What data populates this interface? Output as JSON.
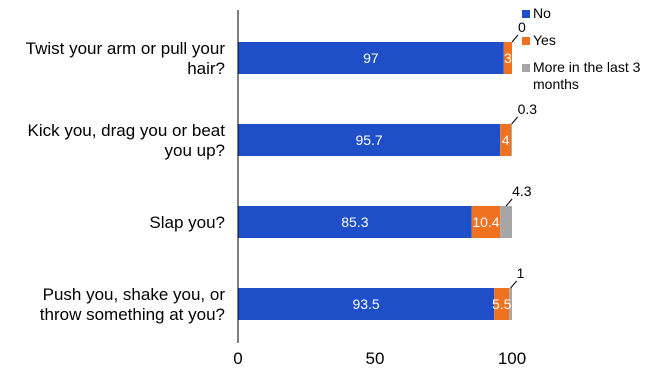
{
  "chart_data": {
    "type": "bar",
    "orientation": "horizontal",
    "stacked": true,
    "title": "",
    "xlabel": "",
    "ylabel": "",
    "xlim": [
      0,
      100
    ],
    "xticks": [
      "0",
      "50",
      "100"
    ],
    "grid": false,
    "legend_position": "top-right",
    "categories": [
      [
        "Twist your arm or pull your",
        "hair?"
      ],
      [
        "Kick you, drag you or beat",
        "you up?"
      ],
      [
        "Slap you?"
      ],
      [
        "Push you, shake you, or",
        "throw something at you?"
      ]
    ],
    "series": [
      {
        "name": "No",
        "color": "#1f4fc8",
        "values": [
          97,
          95.7,
          85.3,
          93.5
        ],
        "labels": [
          "97",
          "95.7",
          "85.3",
          "93.5"
        ]
      },
      {
        "name": "Yes",
        "color": "#f07120",
        "values": [
          3,
          4,
          10.4,
          5.5
        ],
        "labels": [
          "3",
          "4",
          "10.4",
          "5.5"
        ]
      },
      {
        "name": "More in the last 3 months",
        "legend_lines": [
          "More in the last 3",
          "months"
        ],
        "color": "#a6a6a6",
        "values": [
          0,
          0.3,
          4.3,
          1
        ],
        "labels": [
          "0",
          "0.3",
          "4.3",
          "1"
        ]
      }
    ]
  }
}
